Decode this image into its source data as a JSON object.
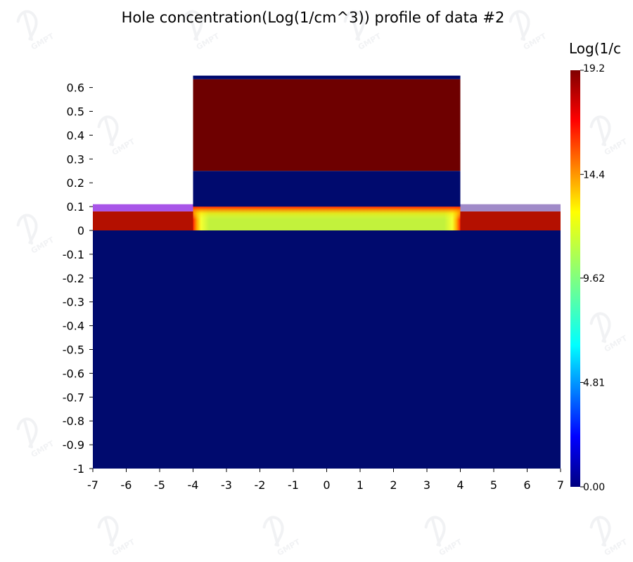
{
  "chart_data": {
    "type": "heatmap",
    "title": "Hole concentration(Log(1/cm^3)) profile of data #2",
    "xlim": [
      -7,
      7
    ],
    "ylim": [
      -1,
      0.65
    ],
    "x_ticks": [
      "-7",
      "-6",
      "-5",
      "-4",
      "-3",
      "-2",
      "-1",
      "0",
      "1",
      "2",
      "3",
      "4",
      "5",
      "6",
      "7"
    ],
    "x_tick_values": [
      -7,
      -6,
      -5,
      -4,
      -3,
      -2,
      -1,
      0,
      1,
      2,
      3,
      4,
      5,
      6,
      7
    ],
    "y_ticks": [
      "0.6",
      "0.5",
      "0.4",
      "0.3",
      "0.2",
      "0.1",
      "0",
      "-0.1",
      "-0.2",
      "-0.3",
      "-0.4",
      "-0.5",
      "-0.6",
      "-0.7",
      "-0.8",
      "-0.9",
      "-1"
    ],
    "y_tick_values": [
      0.6,
      0.5,
      0.4,
      0.3,
      0.2,
      0.1,
      0,
      -0.1,
      -0.2,
      -0.3,
      -0.4,
      -0.5,
      -0.6,
      -0.7,
      -0.8,
      -0.9,
      -1
    ],
    "colorbar": {
      "title": "Log(1/c",
      "min": 0,
      "max": 19.2,
      "tick_labels": [
        "19.2",
        "14.4",
        "9.62",
        "4.81",
        "0.00"
      ],
      "tick_values": [
        19.2,
        14.4,
        9.62,
        4.81,
        0
      ],
      "colormap": "jet"
    },
    "regions": [
      {
        "name": "substrate",
        "x": [
          -7,
          7
        ],
        "y": [
          -1,
          0
        ],
        "value": 0.0
      },
      {
        "name": "left-doped-layer",
        "x": [
          -7,
          -4
        ],
        "y": [
          0,
          0.08
        ],
        "value": 18.2
      },
      {
        "name": "right-doped-layer",
        "x": [
          4,
          7
        ],
        "y": [
          0,
          0.08
        ],
        "value": 18.2
      },
      {
        "name": "channel",
        "x": [
          -4,
          4
        ],
        "y": [
          0,
          0.1
        ],
        "value": 12.0
      },
      {
        "name": "left-thin-layer",
        "x": [
          -7,
          -4
        ],
        "y": [
          0.08,
          0.11
        ],
        "value": -1
      },
      {
        "name": "right-thin-layer",
        "x": [
          4,
          7
        ],
        "y": [
          0.08,
          0.11
        ],
        "value": -1
      },
      {
        "name": "gate-insulator",
        "x": [
          -4,
          4
        ],
        "y": [
          0.1,
          0.25
        ],
        "value": 0.0
      },
      {
        "name": "gate",
        "x": [
          -4,
          4
        ],
        "y": [
          0.25,
          0.635
        ],
        "value": 19.2
      },
      {
        "name": "gate-top-layer",
        "x": [
          -4,
          4
        ],
        "y": [
          0.635,
          0.65
        ],
        "value": 0.0
      }
    ],
    "colors": {
      "substrate": "#000a6e",
      "doped": "#b41000",
      "channel": "#c0f23a",
      "channel_edge": "#ff3c00",
      "gate": "#6e0000",
      "left_thin_layer": "#a855e8",
      "right_thin_layer": "#a08ac8",
      "background": "#ffffff"
    },
    "watermark": "GMPT"
  }
}
